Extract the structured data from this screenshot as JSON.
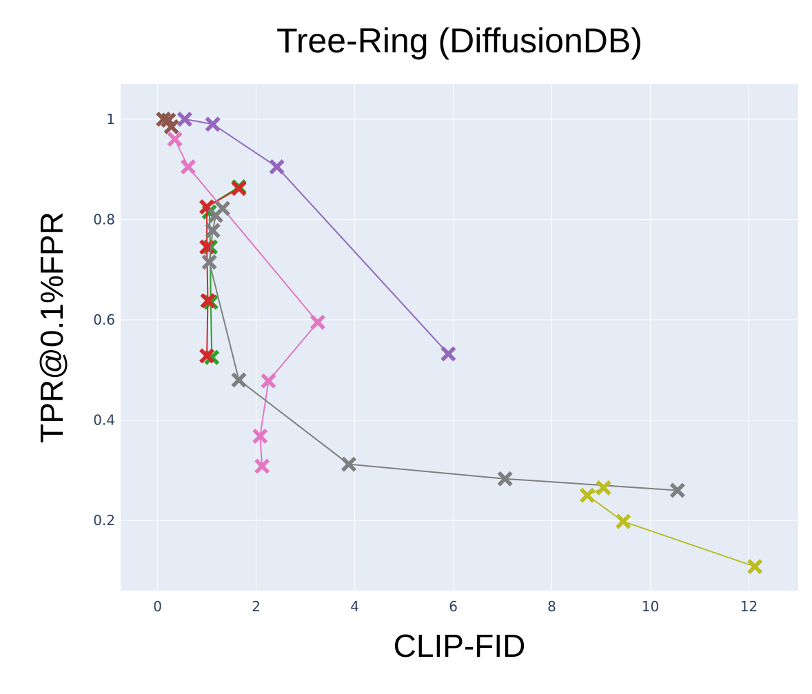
{
  "chart_data": {
    "type": "scatter",
    "title": "Tree-Ring (DiffusionDB)",
    "xlabel": "CLIP-FID",
    "ylabel": "TPR@0.1%FPR",
    "xlim": [
      -0.75,
      13.0
    ],
    "ylim": [
      0.06,
      1.07
    ],
    "xticks": [
      0,
      2,
      4,
      6,
      8,
      10,
      12
    ],
    "xtick_labels": [
      "0",
      "2",
      "4",
      "6",
      "8",
      "10",
      "12"
    ],
    "yticks": [
      0.2,
      0.4,
      0.6,
      0.8,
      1.0
    ],
    "ytick_labels": [
      "0.2",
      "0.4",
      "0.6",
      "0.8",
      "1"
    ],
    "grid": true,
    "background": "#e5ecf6",
    "marker": "x-thick",
    "series": [
      {
        "color": "#2ca02c",
        "x": [
          1.1,
          1.08,
          1.07,
          1.05,
          1.0,
          1.65
        ],
        "y": [
          0.525,
          0.635,
          0.745,
          0.815,
          0.825,
          0.865
        ]
      },
      {
        "color": "#d62728",
        "x": [
          1.0,
          1.02,
          1.0,
          1.0,
          1.65
        ],
        "y": [
          0.528,
          0.638,
          0.745,
          0.825,
          0.862
        ]
      },
      {
        "color": "#9467bd",
        "x": [
          0.55,
          1.12,
          2.42,
          5.9
        ],
        "y": [
          1.0,
          0.99,
          0.905,
          0.532
        ]
      },
      {
        "color": "#8c564b",
        "x": [
          0.12,
          0.22,
          0.28
        ],
        "y": [
          1.0,
          0.998,
          0.985
        ]
      },
      {
        "color": "#e377c2",
        "x": [
          0.35,
          0.62,
          3.25,
          2.25,
          2.08,
          2.12
        ],
        "y": [
          0.96,
          0.905,
          0.595,
          0.478,
          0.368,
          0.308
        ]
      },
      {
        "color": "#7f7f7f",
        "x": [
          1.32,
          1.18,
          1.12,
          1.05,
          1.65,
          3.88,
          7.05,
          10.55
        ],
        "y": [
          0.822,
          0.808,
          0.778,
          0.715,
          0.48,
          0.312,
          0.283,
          0.26
        ]
      },
      {
        "color": "#bcbd22",
        "x": [
          9.05,
          8.72,
          9.45,
          12.12
        ],
        "y": [
          0.265,
          0.25,
          0.198,
          0.108
        ]
      }
    ]
  }
}
